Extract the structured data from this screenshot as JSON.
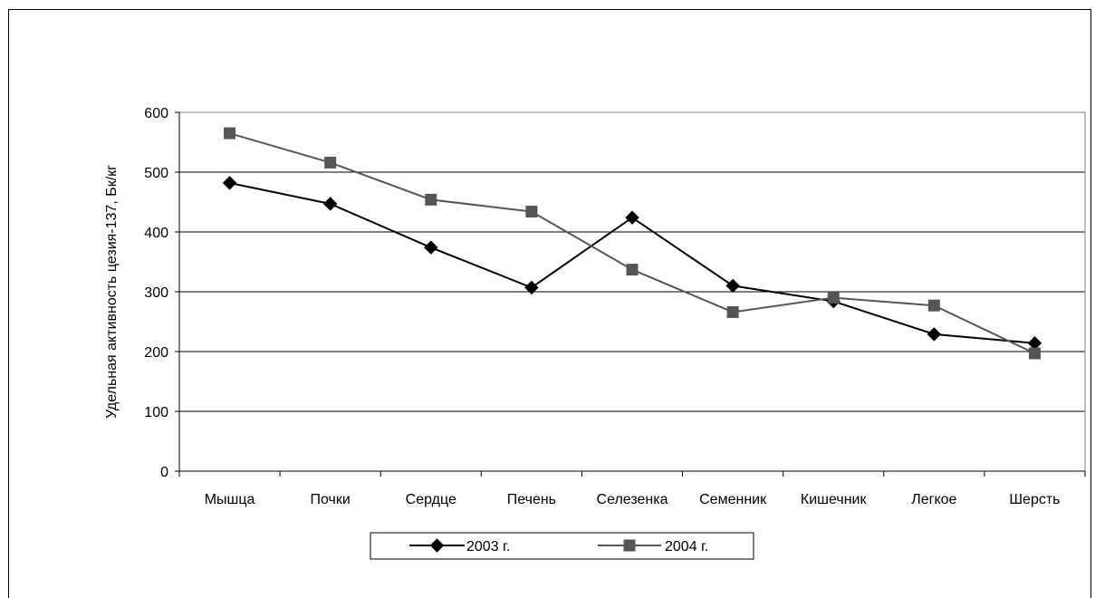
{
  "chart_data": {
    "type": "line",
    "categories": [
      "Мышца",
      "Почки",
      "Сердце",
      "Печень",
      "Селезенка",
      "Семенник",
      "Кишечник",
      "Легкое",
      "Шерсть"
    ],
    "series": [
      {
        "name": "2003 г.",
        "values": [
          482,
          447,
          374,
          307,
          424,
          310,
          284,
          229,
          214
        ],
        "color": "#000000",
        "marker": "diamond"
      },
      {
        "name": "2004 г.",
        "values": [
          565,
          516,
          454,
          434,
          337,
          266,
          290,
          277,
          197
        ],
        "color": "#555555",
        "marker": "square"
      }
    ],
    "xlabel": "",
    "ylabel": "Удельная активность цезия-137, Бк/кг",
    "ylim": [
      0,
      600
    ],
    "yticks": [
      0,
      100,
      200,
      300,
      400,
      500,
      600
    ],
    "grid": true,
    "legend": "bottom"
  }
}
